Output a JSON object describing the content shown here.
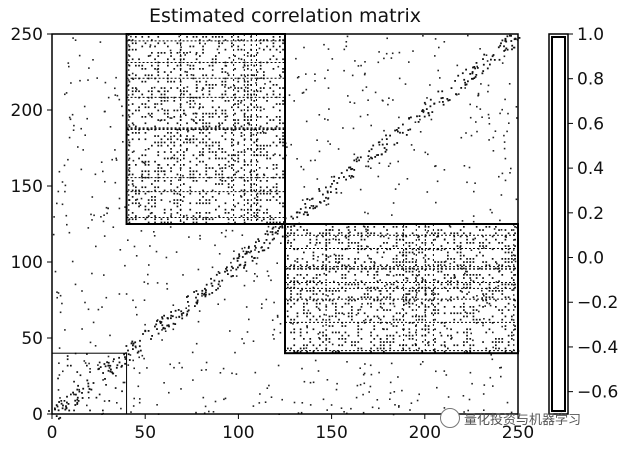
{
  "chart_data": {
    "type": "heatmap",
    "title": "Estimated correlation matrix",
    "xlabel": "",
    "ylabel": "",
    "xlim": [
      0,
      250
    ],
    "ylim": [
      0,
      250
    ],
    "x_ticks": [
      "0",
      "50",
      "100",
      "150",
      "200",
      "250"
    ],
    "y_ticks": [
      "0",
      "50",
      "100",
      "150",
      "200",
      "250"
    ],
    "matrix_size": 250,
    "blocks": [
      {
        "name": "",
        "x_range": [
          0,
          40
        ],
        "y_range": [
          0,
          40
        ]
      },
      {
        "name": "",
        "x_range": [
          40,
          125
        ],
        "y_range": [
          125,
          250
        ]
      },
      {
        "name": "",
        "x_range": [
          125,
          250
        ],
        "y_range": [
          40,
          125
        ]
      }
    ],
    "colorbar": {
      "min": -0.7,
      "max": 1.0,
      "ticks": [
        "1.0",
        "0.8",
        "0.6",
        "0.4",
        "0.2",
        "0.0",
        "−0.2",
        "−0.4",
        "−0.6"
      ],
      "tick_values": [
        1.0,
        0.8,
        0.6,
        0.4,
        0.2,
        0.0,
        -0.2,
        -0.4,
        -0.6
      ]
    },
    "colors": {
      "high": "#000000",
      "low": "#ffffff"
    }
  },
  "watermark": {
    "text": "量化投资与机器学习"
  }
}
